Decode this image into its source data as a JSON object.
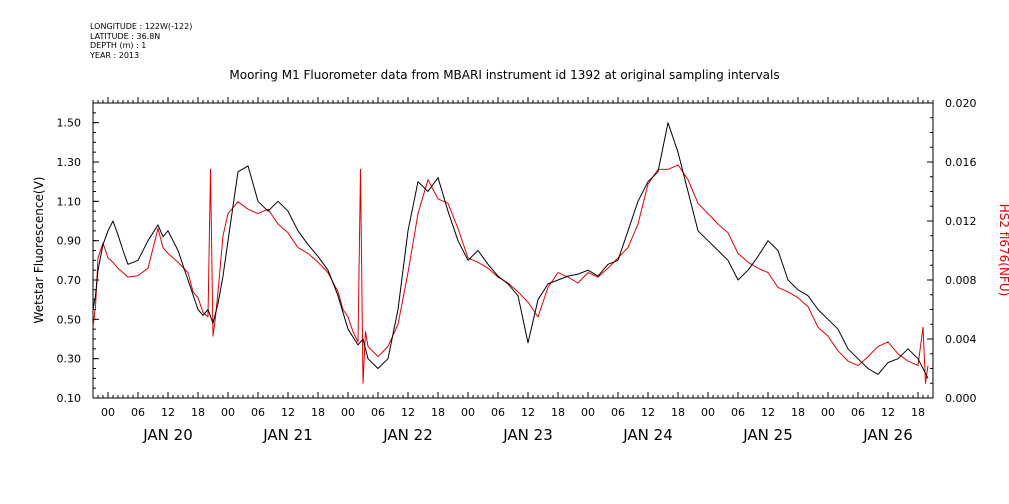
{
  "meta": {
    "longitude": "LONGITUDE : 122W(-122)",
    "latitude": "LATITUDE : 36.8N",
    "depth": "DEPTH (m) : 1",
    "year": "YEAR : 2013"
  },
  "chart_data": {
    "type": "line",
    "title": "Mooring M1 Fluorometer data from MBARI instrument id 1392 at original sampling intervals",
    "ylabel": "Wetstar Fluorescence(V)",
    "y2label": "HS2 fl676(NFU)",
    "ylim": [
      0.1,
      1.6
    ],
    "y2lim": [
      0.0,
      0.02
    ],
    "yticks": [
      "0.10",
      "0.30",
      "0.50",
      "0.70",
      "0.90",
      "1.10",
      "1.30",
      "1.50"
    ],
    "y2ticks": [
      "0.000",
      "0.004",
      "0.008",
      "0.012",
      "0.016",
      "0.020"
    ],
    "xlim_hours": [
      -3,
      165
    ],
    "hour_ticks": [
      "00",
      "06",
      "12",
      "18",
      "00",
      "06",
      "12",
      "18",
      "00",
      "06",
      "12",
      "18",
      "00",
      "06",
      "12",
      "18",
      "00",
      "06",
      "12",
      "18",
      "00",
      "06",
      "12",
      "18",
      "00",
      "06",
      "12",
      "18"
    ],
    "day_labels": [
      "JAN 20",
      "JAN 21",
      "JAN 22",
      "JAN 23",
      "JAN 24",
      "JAN 25",
      "JAN 26"
    ],
    "colors": {
      "wetstar": "#000000",
      "hs2": "#e00000",
      "y2label": "#e00000"
    },
    "series": [
      {
        "axis": "left",
        "hours": [
          -3,
          -2.5,
          -2,
          -1,
          0,
          1,
          2,
          3,
          4,
          6,
          8,
          10,
          11,
          12,
          14,
          16,
          18,
          19,
          20,
          21,
          22,
          23,
          24,
          26,
          28,
          30,
          32,
          34,
          36,
          38,
          40,
          42,
          44,
          46,
          48,
          50,
          51,
          52,
          54,
          56,
          58,
          60,
          62,
          64,
          66,
          68,
          70,
          72,
          74,
          76,
          78,
          80,
          82,
          84,
          86,
          88,
          90,
          92,
          94,
          96,
          98,
          100,
          102,
          104,
          106,
          108,
          110,
          112,
          114,
          116,
          118,
          120,
          122,
          124,
          126,
          128,
          130,
          132,
          134,
          136,
          138,
          140,
          142,
          144,
          146,
          148,
          150,
          152,
          154,
          156,
          158,
          160,
          162,
          164
        ],
        "values": [
          0.55,
          0.62,
          0.75,
          0.88,
          0.95,
          1.0,
          0.93,
          0.85,
          0.78,
          0.8,
          0.9,
          0.98,
          0.92,
          0.95,
          0.85,
          0.7,
          0.55,
          0.52,
          0.55,
          0.48,
          0.58,
          0.72,
          0.9,
          1.25,
          1.28,
          1.1,
          1.05,
          1.1,
          1.05,
          0.95,
          0.88,
          0.82,
          0.75,
          0.62,
          0.45,
          0.37,
          0.4,
          0.3,
          0.25,
          0.3,
          0.55,
          0.95,
          1.2,
          1.15,
          1.22,
          1.05,
          0.9,
          0.8,
          0.85,
          0.78,
          0.72,
          0.68,
          0.62,
          0.38,
          0.6,
          0.68,
          0.7,
          0.72,
          0.73,
          0.75,
          0.72,
          0.78,
          0.8,
          0.95,
          1.1,
          1.2,
          1.25,
          1.5,
          1.35,
          1.15,
          0.95,
          0.9,
          0.85,
          0.8,
          0.7,
          0.75,
          0.82,
          0.9,
          0.85,
          0.7,
          0.65,
          0.62,
          0.55,
          0.5,
          0.45,
          0.35,
          0.3,
          0.25,
          0.22,
          0.28,
          0.3,
          0.35,
          0.3,
          0.2
        ]
      },
      {
        "axis": "right",
        "hours": [
          -3,
          -2.5,
          -2,
          -1,
          0,
          1,
          2,
          3,
          4,
          6,
          8,
          10,
          11,
          12,
          14,
          16,
          17,
          18,
          19,
          20,
          20.5,
          21,
          21.5,
          22,
          23,
          24,
          26,
          28,
          30,
          32,
          34,
          36,
          38,
          40,
          42,
          44,
          46,
          47,
          48,
          49,
          50,
          50.5,
          51,
          51.5,
          52,
          54,
          56,
          58,
          60,
          62,
          64,
          66,
          68,
          70,
          72,
          74,
          76,
          78,
          80,
          82,
          84,
          86,
          88,
          90,
          92,
          94,
          96,
          98,
          100,
          102,
          104,
          106,
          108,
          110,
          112,
          114,
          116,
          118,
          120,
          122,
          124,
          126,
          128,
          130,
          132,
          134,
          136,
          138,
          140,
          142,
          144,
          146,
          148,
          150,
          152,
          154,
          156,
          158,
          160,
          162,
          163,
          163.5,
          164
        ],
        "values": [
          0.0048,
          0.0062,
          0.0095,
          0.0105,
          0.0095,
          0.0092,
          0.0088,
          0.0085,
          0.0082,
          0.0083,
          0.0088,
          0.0115,
          0.0102,
          0.0098,
          0.0092,
          0.0085,
          0.0072,
          0.0068,
          0.0058,
          0.0055,
          0.0155,
          0.0042,
          0.0055,
          0.0072,
          0.011,
          0.0125,
          0.0133,
          0.0128,
          0.0125,
          0.0128,
          0.0118,
          0.0112,
          0.0102,
          0.0098,
          0.0092,
          0.0085,
          0.0072,
          0.006,
          0.0055,
          0.0045,
          0.0038,
          0.0155,
          0.001,
          0.0045,
          0.0035,
          0.0028,
          0.0035,
          0.005,
          0.0085,
          0.0125,
          0.0148,
          0.0135,
          0.0132,
          0.0115,
          0.0095,
          0.0092,
          0.0088,
          0.0082,
          0.0078,
          0.0072,
          0.0065,
          0.0055,
          0.0075,
          0.0085,
          0.0082,
          0.0078,
          0.0085,
          0.0082,
          0.0088,
          0.0095,
          0.0102,
          0.0118,
          0.0145,
          0.0155,
          0.0155,
          0.0158,
          0.0148,
          0.0132,
          0.0125,
          0.0118,
          0.0112,
          0.0098,
          0.0092,
          0.0088,
          0.0085,
          0.0075,
          0.0072,
          0.0068,
          0.0062,
          0.0048,
          0.0042,
          0.0032,
          0.0025,
          0.0022,
          0.0028,
          0.0035,
          0.0038,
          0.003,
          0.0025,
          0.0022,
          0.0048,
          0.001,
          0.0022
        ]
      }
    ]
  }
}
